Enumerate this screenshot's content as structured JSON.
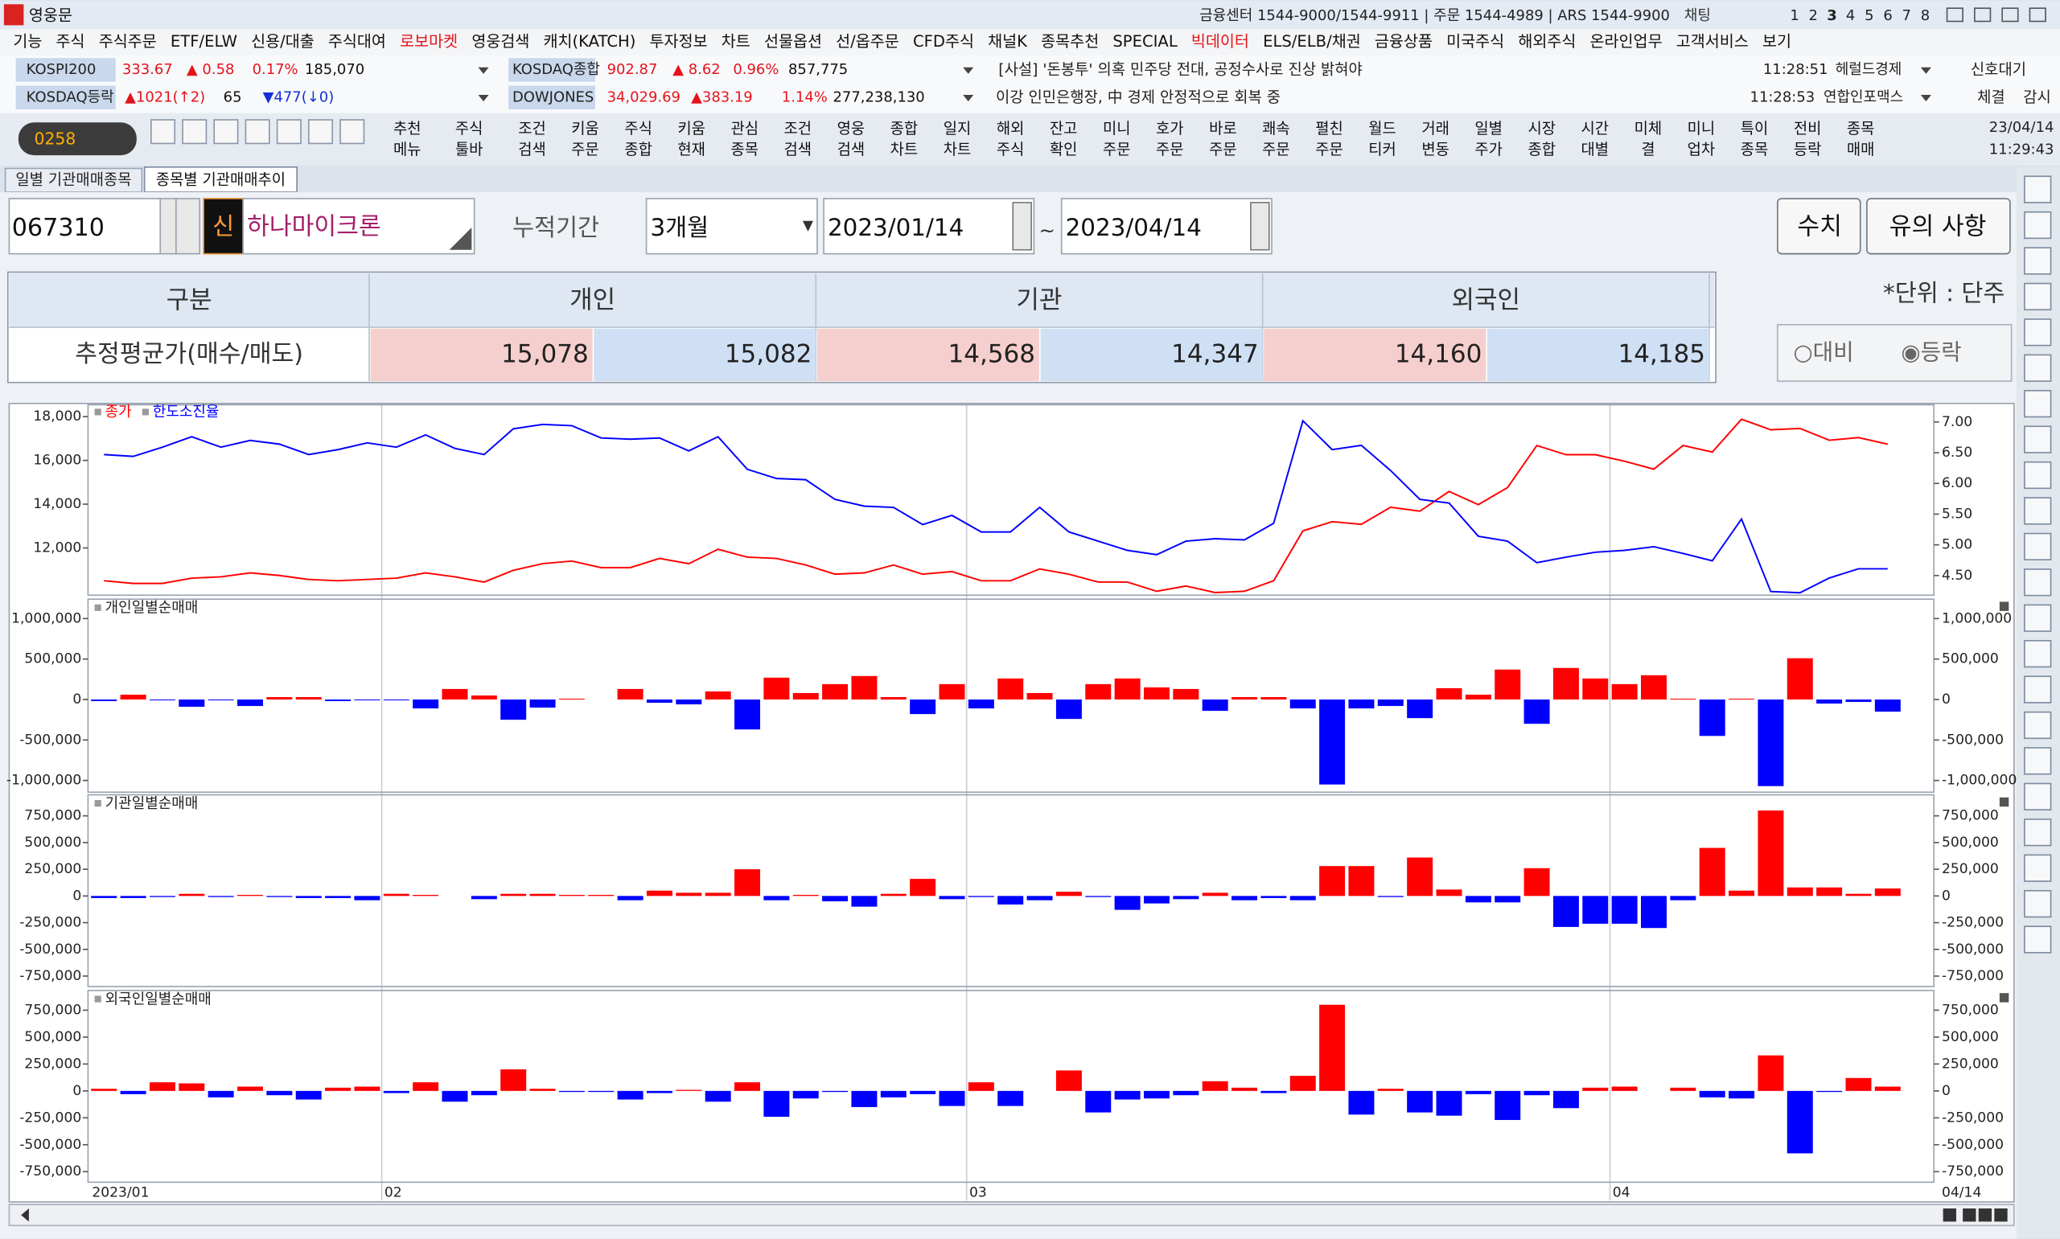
{
  "title_bar": {
    "app": "영웅문",
    "info": "금융센터 1544-9000/1544-9911 | 주문 1544-4989 | ARS 1544-9900",
    "chat": "채팅",
    "screens": [
      "1",
      "2",
      "3",
      "4",
      "5",
      "6",
      "7",
      "8"
    ]
  },
  "menu": [
    {
      "label": "기능"
    },
    {
      "label": "주식"
    },
    {
      "label": "주식주문"
    },
    {
      "label": "ETF/ELW"
    },
    {
      "label": "신용/대출"
    },
    {
      "label": "주식대여"
    },
    {
      "label": "로보마켓",
      "color": "#e4141b"
    },
    {
      "label": "영웅검색"
    },
    {
      "label": "캐치(KATCH)"
    },
    {
      "label": "투자정보"
    },
    {
      "label": "차트"
    },
    {
      "label": "선물옵션"
    },
    {
      "label": "선/옵주문"
    },
    {
      "label": "CFD주식"
    },
    {
      "label": "채널K"
    },
    {
      "label": "종목추천"
    },
    {
      "label": "SPECIAL"
    },
    {
      "label": "빅데이터",
      "color": "#e4141b"
    },
    {
      "label": "ELS/ELB/채권"
    },
    {
      "label": "금융상품"
    },
    {
      "label": "미국주식"
    },
    {
      "label": "해외주식"
    },
    {
      "label": "온라인업무"
    },
    {
      "label": "고객서비스"
    },
    {
      "label": "보기"
    }
  ],
  "market": [
    {
      "name": "KOSPI200",
      "price": "333.67",
      "change": "▲ 0.58",
      "rate": "0.17%",
      "volume": "185,070"
    },
    {
      "name": "KOSDAQ종합",
      "price": "902.87",
      "change": "▲ 8.62",
      "rate": "0.96%",
      "volume": "857,775"
    },
    {
      "name": "KOSDAQ등락",
      "up": "▲1021(↑2)",
      "flat": "65",
      "down": "▼477(↓0)"
    },
    {
      "name": "DOWJONES",
      "price": "34,029.69",
      "change": "▲383.19",
      "rate": "1.14%",
      "volume": "277,238,130"
    }
  ],
  "news": [
    {
      "text": "[사설] '돈봉투' 의혹 민주당 전대, 공정수사로 진상 밝혀야",
      "time": "11:28:51",
      "source": "헤럴드경제"
    },
    {
      "text": "이강 인민은행장, 中 경제 안정적으로 회복 중",
      "time": "11:28:53",
      "source": "연합인포맥스"
    }
  ],
  "status": {
    "signal": "신호대기",
    "fill": "체결",
    "watch": "감시"
  },
  "toolbar": {
    "code": "0258",
    "buttons": [
      [
        "추천",
        "메뉴"
      ],
      [
        "주식",
        "툴바"
      ],
      [
        "조건",
        "검색"
      ],
      [
        "키움",
        "주문"
      ],
      [
        "주식",
        "종합"
      ],
      [
        "키움",
        "현재"
      ],
      [
        "관심",
        "종목"
      ],
      [
        "조건",
        "검색"
      ],
      [
        "영웅",
        "검색"
      ],
      [
        "종합",
        "차트"
      ],
      [
        "일지",
        "차트"
      ],
      [
        "해외",
        "주식"
      ],
      [
        "잔고",
        "확인"
      ],
      [
        "미니",
        "주문"
      ],
      [
        "호가",
        "주문"
      ],
      [
        "바로",
        "주문"
      ],
      [
        "쾌속",
        "주문"
      ],
      [
        "펼친",
        "주문"
      ],
      [
        "월드",
        "티커"
      ],
      [
        "거래",
        "변동"
      ],
      [
        "일별",
        "주가"
      ],
      [
        "시장",
        "종합"
      ],
      [
        "시간",
        "대별"
      ],
      [
        "미체",
        "결"
      ],
      [
        "미니",
        "업차"
      ],
      [
        "특이",
        "종목"
      ],
      [
        "전비",
        "등락"
      ],
      [
        "종목",
        "매매"
      ]
    ],
    "date": "23/04/14",
    "time": "11:29:43"
  },
  "tabs": [
    "일별 기관매매종목",
    "종목별 기관매매추이"
  ],
  "form": {
    "code": "067310",
    "badge": "신",
    "name": "하나마이크론",
    "period_label": "누적기간",
    "period": "3개월",
    "start": "2023/01/14",
    "sep": "~",
    "end": "2023/04/14",
    "button_values": "수치",
    "button_notes": "유의 사항"
  },
  "summary_table": {
    "headers": [
      "구분",
      "개인",
      "기관",
      "외국인"
    ],
    "row_label": "추정평균가(매수/매도)",
    "values": [
      "15,078",
      "15,082",
      "14,568",
      "14,347",
      "14,160",
      "14,185"
    ],
    "unit": "*단위 : 단주",
    "options": [
      "○대비",
      "◉등락"
    ]
  },
  "chart_data": [
    {
      "type": "line",
      "series": [
        {
          "name": "종가",
          "color": "#ff0000",
          "values": [
            10500,
            10380,
            10380,
            10620,
            10680,
            10860,
            10740,
            10560,
            10500,
            10560,
            10620,
            10860,
            10680,
            10440,
            10980,
            11280,
            11400,
            11100,
            11100,
            11520,
            11280,
            11940,
            11580,
            11520,
            11220,
            10800,
            10860,
            11220,
            10800,
            10920,
            10500,
            10500,
            11040,
            10800,
            10440,
            10440,
            10020,
            10260,
            9960,
            10020,
            10500,
            12780,
            13200,
            13080,
            13860,
            13680,
            14580,
            13980,
            14760,
            16680,
            16260,
            16260,
            15960,
            15600,
            16680,
            16380,
            17880,
            17400,
            17460,
            16920,
            17040,
            16740
          ]
        },
        {
          "name": "한도소진율",
          "color": "#0000ff",
          "axis": "y2",
          "values": [
            6.47,
            6.44,
            6.59,
            6.76,
            6.59,
            6.7,
            6.64,
            6.47,
            6.55,
            6.66,
            6.59,
            6.79,
            6.57,
            6.47,
            6.89,
            6.96,
            6.94,
            6.74,
            6.72,
            6.74,
            6.53,
            6.76,
            6.23,
            6.08,
            6.06,
            5.74,
            5.63,
            5.61,
            5.33,
            5.48,
            5.21,
            5.21,
            5.61,
            5.21,
            5.06,
            4.91,
            4.84,
            5.06,
            5.1,
            5.08,
            5.35,
            7.02,
            6.55,
            6.62,
            6.21,
            5.74,
            5.68,
            5.14,
            5.06,
            4.71,
            4.8,
            4.88,
            4.91,
            4.97,
            4.86,
            4.74,
            5.42,
            4.24,
            4.22,
            4.46,
            4.61,
            4.61
          ]
        }
      ],
      "ylim": [
        9840,
        18540
      ],
      "yticks": [
        {
          "value": 12000,
          "label": "12,000"
        },
        {
          "value": 14000,
          "label": "14,000"
        },
        {
          "value": 16000,
          "label": "16,000"
        },
        {
          "value": 18000,
          "label": "18,000"
        }
      ],
      "y2lim": [
        4.18,
        7.28
      ],
      "y2ticks": [
        {
          "value": 4.5,
          "label": "4.50"
        },
        {
          "value": 5,
          "label": "5.00"
        },
        {
          "value": 5.5,
          "label": "5.50"
        },
        {
          "value": 6,
          "label": "6.00"
        },
        {
          "value": 6.5,
          "label": "6.50"
        },
        {
          "value": 7,
          "label": "7.00"
        }
      ]
    },
    {
      "type": "bar",
      "title": "개인일별순매매",
      "positive_color": "#ff0000",
      "negative_color": "#0000ff",
      "values": [
        -20000,
        60000,
        -10000,
        -90000,
        -10000,
        -80000,
        30000,
        30000,
        -20000,
        -10000,
        -10000,
        -110000,
        130000,
        50000,
        -250000,
        -100000,
        10000,
        0,
        130000,
        -40000,
        -60000,
        100000,
        -370000,
        270000,
        80000,
        190000,
        290000,
        30000,
        -180000,
        190000,
        -110000,
        260000,
        80000,
        -240000,
        190000,
        260000,
        150000,
        130000,
        -140000,
        30000,
        30000,
        -110000,
        -1050000,
        -110000,
        -80000,
        -230000,
        140000,
        60000,
        370000,
        -300000,
        390000,
        260000,
        190000,
        300000,
        10000,
        -450000,
        10000,
        -1070000,
        510000,
        -50000,
        -30000,
        -150000
      ],
      "ylim": [
        -1145000,
        1240000
      ],
      "yticks": [
        {
          "value": -1000000,
          "label": "-1,000,000"
        },
        {
          "value": -500000,
          "label": "-500,000"
        },
        0,
        {
          "value": 500000,
          "label": "500,000"
        },
        {
          "value": 1000000,
          "label": "1,000,000"
        }
      ]
    },
    {
      "type": "bar",
      "title": "기관일별순매매",
      "positive_color": "#ff0000",
      "negative_color": "#0000ff",
      "values": [
        -20000,
        -20000,
        -10000,
        20000,
        -10000,
        10000,
        -10000,
        -20000,
        -20000,
        -40000,
        20000,
        10000,
        0,
        -30000,
        20000,
        20000,
        10000,
        10000,
        -40000,
        50000,
        30000,
        30000,
        250000,
        -40000,
        10000,
        -50000,
        -100000,
        20000,
        160000,
        -30000,
        -10000,
        -80000,
        -40000,
        40000,
        -10000,
        -130000,
        -70000,
        -30000,
        30000,
        -40000,
        -20000,
        -40000,
        280000,
        280000,
        -10000,
        360000,
        60000,
        -60000,
        -60000,
        260000,
        -290000,
        -260000,
        -260000,
        -300000,
        -40000,
        450000,
        50000,
        800000,
        80000,
        80000,
        20000,
        70000
      ],
      "ylim": [
        -848000,
        947000
      ],
      "yticks": [
        {
          "value": -750000,
          "label": "-750,000"
        },
        {
          "value": -500000,
          "label": "-500,000"
        },
        {
          "value": -250000,
          "label": "-250,000"
        },
        0,
        {
          "value": 250000,
          "label": "250,000"
        },
        {
          "value": 500000,
          "label": "500,000"
        },
        {
          "value": 750000,
          "label": "750,000"
        }
      ]
    },
    {
      "type": "bar",
      "title": "외국인일별순매매",
      "positive_color": "#ff0000",
      "negative_color": "#0000ff",
      "values": [
        20000,
        -30000,
        80000,
        70000,
        -60000,
        40000,
        -40000,
        -80000,
        30000,
        40000,
        -20000,
        80000,
        -100000,
        -40000,
        200000,
        20000,
        -10000,
        -10000,
        -80000,
        -20000,
        10000,
        -100000,
        80000,
        -240000,
        -70000,
        -10000,
        -150000,
        -60000,
        -30000,
        -140000,
        80000,
        -140000,
        0,
        190000,
        -200000,
        -80000,
        -70000,
        -40000,
        90000,
        30000,
        -20000,
        140000,
        800000,
        -220000,
        20000,
        -200000,
        -230000,
        -30000,
        -270000,
        -40000,
        -160000,
        30000,
        40000,
        0,
        30000,
        -60000,
        -70000,
        330000,
        -580000,
        -10000,
        120000,
        40000
      ],
      "ylim": [
        -848000,
        933000
      ],
      "yticks": [
        {
          "value": -750000,
          "label": "-750,000"
        },
        {
          "value": -500000,
          "label": "-500,000"
        },
        {
          "value": -250000,
          "label": "-250,000"
        },
        0,
        {
          "value": 250000,
          "label": "250,000"
        },
        {
          "value": 500000,
          "label": "500,000"
        },
        {
          "value": 750000,
          "label": "750,000"
        }
      ],
      "categories": [
        "2023/01",
        null,
        null,
        null,
        null,
        null,
        null,
        null,
        null,
        null,
        "02",
        null,
        null,
        null,
        null,
        null,
        null,
        null,
        null,
        null,
        null,
        null,
        null,
        null,
        null,
        null,
        null,
        null,
        null,
        null,
        "03",
        null,
        null,
        null,
        null,
        null,
        null,
        null,
        null,
        null,
        null,
        null,
        null,
        null,
        null,
        null,
        null,
        null,
        null,
        null,
        null,
        null,
        "04",
        null,
        null,
        null,
        null,
        null,
        null,
        null,
        null,
        "04/14"
      ]
    }
  ]
}
